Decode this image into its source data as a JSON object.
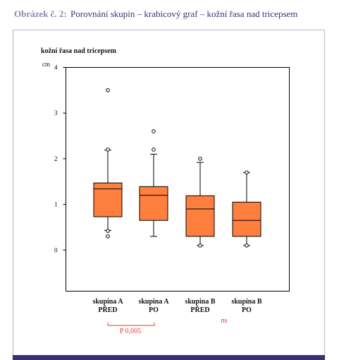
{
  "caption": {
    "label": "Obrázek č. 2:",
    "text": "Porovnání skupin – krabicový graf – kožní řasa nad tricepsem"
  },
  "chart_data": {
    "type": "box",
    "title": "kožní řasa nad tricepsem",
    "y_unit": "cm",
    "categories": [
      "skupina A\nPŘED",
      "skupina A\nPO",
      "skupina B\nPŘED",
      "skupina B\nPO"
    ],
    "color": "#ff7f3f",
    "boxes": [
      {
        "low": 0.43,
        "q1": 0.73,
        "median": 1.34,
        "q3": 1.47,
        "high": 2.19,
        "outliers": [
          3.5,
          2.2,
          0.42,
          0.3
        ]
      },
      {
        "low": 0.3,
        "q1": 0.65,
        "median": 1.2,
        "q3": 1.39,
        "high": 2.1,
        "outliers": [
          2.6,
          2.2
        ]
      },
      {
        "low": 0.1,
        "q1": 0.3,
        "median": 0.9,
        "q3": 1.19,
        "high": 1.92,
        "outliers": [
          2.0,
          0.1
        ]
      },
      {
        "low": 0.1,
        "q1": 0.3,
        "median": 0.65,
        "q3": 1.05,
        "high": 1.7,
        "outliers": [
          1.7,
          0.1
        ]
      }
    ],
    "ylim": [
      -0.9,
      4
    ],
    "yticks": [
      0,
      1,
      2,
      3,
      4
    ],
    "annotations": [
      {
        "text": "P 0,005"
      },
      {
        "text": "ns"
      }
    ]
  }
}
